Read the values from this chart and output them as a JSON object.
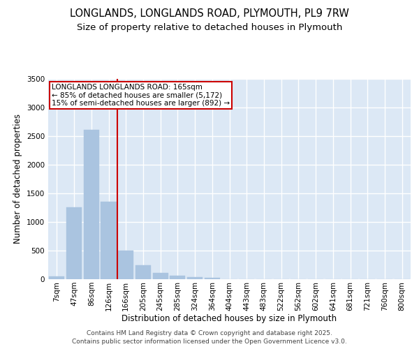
{
  "title_line1": "LONGLANDS, LONGLANDS ROAD, PLYMOUTH, PL9 7RW",
  "title_line2": "Size of property relative to detached houses in Plymouth",
  "xlabel": "Distribution of detached houses by size in Plymouth",
  "ylabel": "Number of detached properties",
  "categories": [
    "7sqm",
    "47sqm",
    "86sqm",
    "126sqm",
    "166sqm",
    "205sqm",
    "245sqm",
    "285sqm",
    "324sqm",
    "364sqm",
    "404sqm",
    "443sqm",
    "483sqm",
    "522sqm",
    "562sqm",
    "602sqm",
    "641sqm",
    "681sqm",
    "721sqm",
    "760sqm",
    "800sqm"
  ],
  "values": [
    50,
    1250,
    2600,
    1350,
    500,
    240,
    110,
    55,
    40,
    30,
    0,
    0,
    0,
    0,
    0,
    0,
    0,
    0,
    0,
    0,
    0
  ],
  "bar_color": "#aac4e0",
  "bar_edgecolor": "#aac4e0",
  "vline_color": "#cc0000",
  "vline_index": 4,
  "annotation_text": "LONGLANDS LONGLANDS ROAD: 165sqm\n← 85% of detached houses are smaller (5,172)\n15% of semi-detached houses are larger (892) →",
  "annotation_box_edgecolor": "#cc0000",
  "ylim": [
    0,
    3500
  ],
  "yticks": [
    0,
    500,
    1000,
    1500,
    2000,
    2500,
    3000,
    3500
  ],
  "background_color": "#dce8f5",
  "grid_color": "#ffffff",
  "fig_background": "#ffffff",
  "footer_line1": "Contains HM Land Registry data © Crown copyright and database right 2025.",
  "footer_line2": "Contains public sector information licensed under the Open Government Licence v3.0.",
  "title_fontsize": 10.5,
  "subtitle_fontsize": 9.5,
  "axis_label_fontsize": 8.5,
  "tick_fontsize": 7.5,
  "annotation_fontsize": 7.5,
  "footer_fontsize": 6.5
}
